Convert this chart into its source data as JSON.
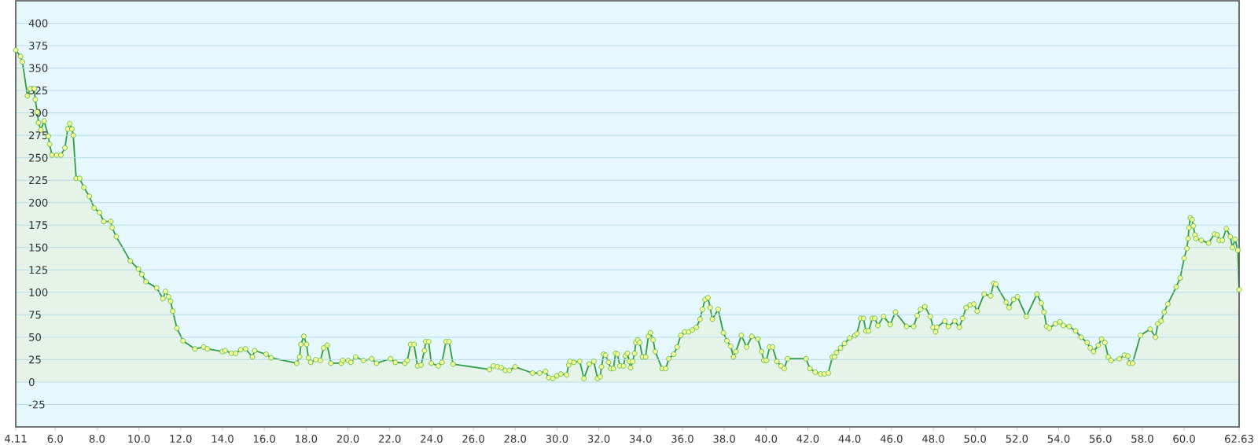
{
  "chart_data": {
    "type": "area",
    "xlim": [
      4.11,
      62.63
    ],
    "ylim": [
      -50,
      425
    ],
    "xticks": [
      4.11,
      {
        "value": 6,
        "label": "6.0"
      },
      {
        "value": 8,
        "label": "8.0"
      },
      {
        "value": 10,
        "label": "10.0"
      },
      {
        "value": 12,
        "label": "12.0"
      },
      {
        "value": 14,
        "label": "14.0"
      },
      {
        "value": 16,
        "label": "16.0"
      },
      {
        "value": 18,
        "label": "18.0"
      },
      {
        "value": 20,
        "label": "20.0"
      },
      {
        "value": 22,
        "label": "22.0"
      },
      {
        "value": 24,
        "label": "24.0"
      },
      {
        "value": 26,
        "label": "26.0"
      },
      {
        "value": 28,
        "label": "28.0"
      },
      {
        "value": 30,
        "label": "30.0"
      },
      {
        "value": 32,
        "label": "32.0"
      },
      {
        "value": 34,
        "label": "34.0"
      },
      {
        "value": 36,
        "label": "36.0"
      },
      {
        "value": 38,
        "label": "38.0"
      },
      {
        "value": 40,
        "label": "40.0"
      },
      {
        "value": 42,
        "label": "42.0"
      },
      {
        "value": 44,
        "label": "44.0"
      },
      {
        "value": 46,
        "label": "46.0"
      },
      {
        "value": 48,
        "label": "48.0"
      },
      {
        "value": 50,
        "label": "50.0"
      },
      {
        "value": 52,
        "label": "52.0"
      },
      {
        "value": 54,
        "label": "54.0"
      },
      {
        "value": 56,
        "label": "56.0"
      },
      {
        "value": 58,
        "label": "58.0"
      },
      {
        "value": 60,
        "label": "60.0"
      },
      62.63
    ],
    "yticks": [
      -25,
      0,
      25,
      50,
      75,
      100,
      125,
      150,
      175,
      200,
      225,
      250,
      275,
      300,
      325,
      350,
      375,
      400
    ],
    "grid": "y",
    "marker": "circle",
    "line_style": "solid",
    "series": [
      {
        "color": "#2f9e44",
        "x": [
          4.11,
          4.34,
          4.43,
          4.67,
          4.8,
          5.0,
          5.04,
          5.14,
          5.2,
          5.31,
          5.47,
          5.67,
          5.73,
          5.84,
          6.07,
          6.27,
          6.46,
          6.6,
          6.69,
          6.8,
          6.86,
          7.0,
          7.17,
          7.37,
          7.63,
          7.86,
          8.12,
          8.32,
          8.66,
          8.72,
          8.92,
          9.59,
          9.98,
          10.14,
          10.34,
          10.85,
          11.15,
          11.27,
          11.42,
          11.52,
          11.62,
          11.82,
          12.11,
          12.68,
          13.1,
          13.28,
          13.99,
          14.13,
          14.43,
          14.63,
          14.87,
          15.1,
          15.43,
          15.54,
          16.09,
          16.33,
          17.55,
          17.69,
          17.75,
          17.89,
          18.02,
          18.11,
          18.22,
          18.46,
          18.68,
          18.84,
          19.01,
          19.19,
          19.68,
          19.75,
          20.01,
          20.14,
          20.37,
          20.74,
          21.14,
          21.37,
          22.04,
          22.27,
          22.73,
          22.84,
          23.0,
          23.16,
          23.33,
          23.5,
          23.66,
          23.72,
          23.86,
          23.99,
          24.32,
          24.5,
          24.69,
          24.84,
          25.03,
          26.77,
          26.96,
          27.15,
          27.34,
          27.53,
          27.72,
          28.0,
          28.83,
          29.17,
          29.45,
          29.61,
          29.8,
          29.99,
          30.18,
          30.46,
          30.56,
          30.62,
          30.81,
          31.09,
          31.29,
          31.54,
          31.76,
          31.94,
          32.07,
          32.13,
          32.23,
          32.32,
          32.47,
          32.57,
          32.7,
          32.8,
          32.89,
          33.01,
          33.18,
          33.27,
          33.37,
          33.46,
          33.52,
          33.62,
          33.71,
          33.77,
          33.86,
          33.96,
          34.09,
          34.24,
          34.37,
          34.47,
          34.6,
          34.7,
          35.03,
          35.2,
          35.35,
          35.58,
          35.75,
          35.92,
          36.11,
          36.3,
          36.48,
          36.67,
          36.84,
          36.96,
          37.08,
          37.22,
          37.33,
          37.43,
          37.71,
          37.96,
          38.13,
          38.31,
          38.44,
          38.56,
          38.82,
          39.07,
          39.32,
          39.61,
          39.79,
          39.89,
          40.02,
          40.17,
          40.31,
          40.52,
          40.71,
          40.87,
          41.03,
          41.91,
          42.1,
          42.35,
          42.6,
          42.79,
          42.98,
          43.17,
          43.27,
          43.37,
          43.56,
          43.75,
          44.0,
          44.25,
          44.35,
          44.53,
          44.66,
          44.78,
          44.91,
          45.08,
          45.2,
          45.35,
          45.62,
          45.94,
          46.19,
          46.72,
          47.06,
          47.23,
          47.39,
          47.6,
          47.86,
          47.99,
          48.11,
          48.17,
          48.55,
          48.72,
          49.03,
          49.25,
          49.4,
          49.57,
          49.76,
          49.94,
          50.1,
          50.43,
          50.74,
          50.89,
          50.99,
          51.49,
          51.63,
          51.84,
          52.03,
          52.45,
          52.96,
          53.17,
          53.3,
          53.42,
          53.55,
          53.84,
          54.06,
          54.22,
          54.5,
          54.81,
          55.07,
          55.36,
          55.51,
          55.67,
          55.89,
          56.05,
          56.21,
          56.37,
          56.5,
          56.9,
          57.15,
          57.31,
          57.38,
          57.53,
          57.91,
          58.38,
          58.63,
          58.74,
          58.9,
          59.05,
          59.22,
          59.62,
          59.81,
          60.0,
          60.13,
          60.19,
          60.23,
          60.29,
          60.38,
          60.44,
          60.51,
          60.57,
          60.82,
          61.17,
          61.45,
          61.58,
          61.68,
          61.83,
          62.02,
          62.21,
          62.31,
          62.44,
          62.57,
          62.63
        ],
        "values": [
          370,
          363,
          357,
          319,
          327,
          327,
          315,
          301,
          289,
          281,
          291,
          274,
          265,
          253,
          253,
          253,
          261,
          282,
          288,
          282,
          275,
          227,
          227,
          217,
          207,
          194,
          189,
          179,
          179,
          172,
          162,
          135,
          126,
          120,
          112,
          105,
          93,
          101,
          95,
          90,
          79,
          60,
          46,
          37,
          39,
          37,
          34,
          35,
          32,
          32,
          36,
          37,
          28,
          35,
          31,
          27,
          21,
          28,
          42,
          51,
          42,
          27,
          22,
          25,
          24,
          38,
          41,
          21,
          21,
          24,
          24,
          22,
          28,
          24,
          26,
          21,
          26,
          22,
          21,
          24,
          42,
          42,
          18,
          19,
          35,
          45,
          45,
          21,
          18,
          22,
          45,
          45,
          20,
          14,
          18,
          17,
          16,
          13,
          13,
          17,
          10,
          10,
          12,
          5,
          4,
          7,
          9,
          8,
          19,
          23,
          22,
          23,
          4,
          20,
          23,
          4,
          6,
          17,
          31,
          30,
          22,
          15,
          15,
          32,
          31,
          18,
          18,
          29,
          32,
          23,
          16,
          23,
          32,
          44,
          47,
          44,
          28,
          28,
          51,
          55,
          47,
          34,
          15,
          15,
          26,
          31,
          39,
          52,
          56,
          56,
          58,
          61,
          70,
          81,
          92,
          94,
          83,
          70,
          81,
          55,
          46,
          40,
          28,
          34,
          52,
          39,
          51,
          48,
          34,
          24,
          24,
          39,
          39,
          23,
          18,
          15,
          26,
          26,
          15,
          11,
          9,
          9,
          10,
          28,
          28,
          33,
          38,
          43,
          49,
          52,
          54,
          71,
          71,
          57,
          57,
          71,
          71,
          63,
          73,
          64,
          78,
          62,
          62,
          74,
          81,
          84,
          73,
          61,
          56,
          61,
          68,
          62,
          68,
          61,
          71,
          83,
          86,
          87,
          79,
          98,
          96,
          110,
          109,
          89,
          83,
          92,
          95,
          73,
          98,
          88,
          78,
          62,
          60,
          65,
          67,
          63,
          62,
          57,
          50,
          44,
          38,
          34,
          41,
          48,
          44,
          28,
          24,
          26,
          30,
          29,
          21,
          21,
          52,
          59,
          50,
          65,
          68,
          78,
          87,
          106,
          116,
          138,
          149,
          160,
          172,
          183,
          181,
          174,
          164,
          160,
          158,
          155,
          165,
          164,
          158,
          158,
          171,
          162,
          150,
          159,
          147,
          103
        ]
      }
    ]
  }
}
